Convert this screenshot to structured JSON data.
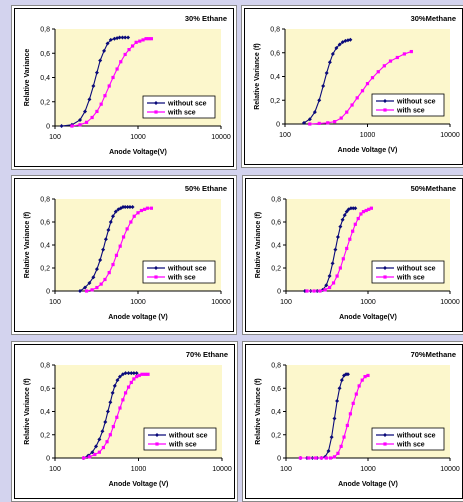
{
  "colors": {
    "without_sce": "#0a0a7a",
    "with_sce": "#ff00ff",
    "plot_bg": "#fcf7cc",
    "page_bg": "#d3d3ee"
  },
  "chart_data": [
    {
      "type": "line",
      "title": "30% Ethane",
      "xlabel": "Anode Voltage(V)",
      "ylabel": "Relative Variance",
      "xscale": "log",
      "xlim": [
        100,
        10000
      ],
      "ylim": [
        0,
        0.8
      ],
      "x_ticks": [
        "100",
        "1000",
        "10000"
      ],
      "y_ticks": [
        "0",
        "0,2",
        "0,4",
        "0,6",
        "0,8"
      ],
      "legend": "lower-right",
      "series": [
        {
          "name": "without sce",
          "x": [
            120,
            160,
            200,
            230,
            260,
            290,
            320,
            350,
            390,
            430,
            470,
            520,
            560,
            600,
            650,
            700,
            760
          ],
          "y": [
            0,
            0.01,
            0.05,
            0.12,
            0.22,
            0.33,
            0.44,
            0.54,
            0.62,
            0.68,
            0.71,
            0.72,
            0.725,
            0.73,
            0.73,
            0.73,
            0.73
          ]
        },
        {
          "name": "with sce",
          "x": [
            160,
            200,
            240,
            280,
            320,
            360,
            400,
            450,
            500,
            560,
            620,
            700,
            780,
            860,
            950,
            1050,
            1150,
            1250,
            1350,
            1450
          ],
          "y": [
            0,
            0.01,
            0.03,
            0.07,
            0.12,
            0.18,
            0.25,
            0.33,
            0.4,
            0.47,
            0.53,
            0.59,
            0.63,
            0.66,
            0.69,
            0.7,
            0.71,
            0.72,
            0.72,
            0.72
          ]
        }
      ]
    },
    {
      "type": "line",
      "title": "30%Methane",
      "xlabel": "Anode Voltage (V)",
      "ylabel": "Relative Variance (f)",
      "xscale": "log",
      "xlim": [
        100,
        10000
      ],
      "ylim": [
        0,
        0.8
      ],
      "x_ticks": [
        "100",
        "1000",
        "10000"
      ],
      "y_ticks": [
        "0",
        "0,2",
        "0,4",
        "0,6",
        "0,8"
      ],
      "legend": "lower-right",
      "series": [
        {
          "name": "without sce",
          "x": [
            170,
            200,
            230,
            260,
            290,
            320,
            350,
            380,
            420,
            460,
            500,
            540,
            580,
            620
          ],
          "y": [
            0.01,
            0.04,
            0.1,
            0.2,
            0.32,
            0.43,
            0.52,
            0.59,
            0.64,
            0.67,
            0.69,
            0.7,
            0.705,
            0.71
          ]
        },
        {
          "name": "with sce",
          "x": [
            200,
            260,
            330,
            400,
            480,
            560,
            650,
            750,
            870,
            1000,
            1150,
            1350,
            1600,
            1900,
            2300,
            2800,
            3400
          ],
          "y": [
            0,
            0.005,
            0.01,
            0.02,
            0.05,
            0.1,
            0.16,
            0.22,
            0.28,
            0.34,
            0.39,
            0.44,
            0.49,
            0.53,
            0.56,
            0.59,
            0.61
          ]
        }
      ]
    },
    {
      "type": "line",
      "title": "50% Ethane",
      "xlabel": "Anode voltage (V)",
      "ylabel": "Relative Variance (f)",
      "xscale": "log",
      "xlim": [
        100,
        10000
      ],
      "ylim": [
        0,
        0.8
      ],
      "x_ticks": [
        "100",
        "1000",
        "10000"
      ],
      "y_ticks": [
        "0",
        "0,2",
        "0,4",
        "0,6",
        "0,8"
      ],
      "legend": "lower-right",
      "series": [
        {
          "name": "without sce",
          "x": [
            200,
            230,
            260,
            290,
            320,
            350,
            380,
            410,
            440,
            470,
            500,
            540,
            580,
            620,
            660,
            700,
            750,
            800,
            860
          ],
          "y": [
            0,
            0.03,
            0.07,
            0.12,
            0.19,
            0.27,
            0.36,
            0.45,
            0.53,
            0.6,
            0.65,
            0.69,
            0.71,
            0.72,
            0.73,
            0.73,
            0.73,
            0.73,
            0.73
          ]
        },
        {
          "name": "with sce",
          "x": [
            240,
            280,
            320,
            360,
            400,
            450,
            500,
            550,
            610,
            670,
            740,
            820,
            900,
            1000,
            1100,
            1200,
            1300,
            1450
          ],
          "y": [
            0,
            0.01,
            0.03,
            0.06,
            0.1,
            0.16,
            0.23,
            0.31,
            0.39,
            0.47,
            0.54,
            0.6,
            0.65,
            0.68,
            0.7,
            0.71,
            0.72,
            0.72
          ]
        }
      ]
    },
    {
      "type": "line",
      "title": "50%Methane",
      "xlabel": "Anode Voltage(V)",
      "ylabel": "Relative Variance (f)",
      "xscale": "log",
      "xlim": [
        100,
        10000
      ],
      "ylim": [
        0,
        0.8
      ],
      "x_ticks": [
        "100",
        "1000",
        "10000"
      ],
      "y_ticks": [
        "0",
        "0,2",
        "0,4",
        "0,6",
        "0,8"
      ],
      "legend": "lower-right",
      "series": [
        {
          "name": "without sce",
          "x": [
            170,
            200,
            240,
            280,
            310,
            340,
            370,
            400,
            430,
            460,
            490,
            520,
            550,
            580,
            620,
            660,
            700
          ],
          "y": [
            0,
            0,
            0,
            0.01,
            0.05,
            0.13,
            0.24,
            0.36,
            0.47,
            0.56,
            0.62,
            0.66,
            0.69,
            0.71,
            0.72,
            0.72,
            0.72
          ]
        },
        {
          "name": "with sce",
          "x": [
            180,
            220,
            260,
            300,
            340,
            380,
            420,
            460,
            500,
            550,
            600,
            650,
            700,
            760,
            820,
            880,
            950,
            1020,
            1100
          ],
          "y": [
            0,
            0,
            0,
            0.01,
            0.03,
            0.07,
            0.13,
            0.2,
            0.28,
            0.37,
            0.45,
            0.52,
            0.58,
            0.63,
            0.67,
            0.69,
            0.7,
            0.71,
            0.72
          ]
        }
      ]
    },
    {
      "type": "line",
      "title": "70% Ethane",
      "xlabel": "Anode Voltage (V)",
      "ylabel": "Relative Variance (f)",
      "xscale": "log",
      "xlim": [
        100,
        10000
      ],
      "ylim": [
        0,
        0.8
      ],
      "x_ticks": [
        "100",
        "1000",
        "10000"
      ],
      "y_ticks": [
        "0",
        "0,2",
        "0,4",
        "0,6",
        "0,8"
      ],
      "legend": "lower-right",
      "series": [
        {
          "name": "without sce",
          "x": [
            220,
            250,
            280,
            310,
            340,
            370,
            400,
            430,
            460,
            490,
            520,
            560,
            600,
            650,
            700,
            760,
            820,
            880,
            950
          ],
          "y": [
            0,
            0.02,
            0.05,
            0.1,
            0.16,
            0.23,
            0.31,
            0.4,
            0.48,
            0.56,
            0.62,
            0.67,
            0.7,
            0.72,
            0.73,
            0.73,
            0.73,
            0.73,
            0.73
          ]
        },
        {
          "name": "with sce",
          "x": [
            220,
            260,
            300,
            340,
            380,
            420,
            460,
            500,
            550,
            600,
            650,
            700,
            760,
            820,
            880,
            950,
            1020,
            1100,
            1200,
            1300
          ],
          "y": [
            0,
            0.01,
            0.03,
            0.05,
            0.09,
            0.14,
            0.2,
            0.27,
            0.35,
            0.43,
            0.5,
            0.56,
            0.61,
            0.65,
            0.68,
            0.7,
            0.71,
            0.72,
            0.72,
            0.72
          ]
        }
      ]
    },
    {
      "type": "line",
      "title": "70%Methane",
      "xlabel": "Anode Voltage (V)",
      "ylabel": "Relative Variance (f)",
      "xscale": "log",
      "xlim": [
        100,
        10000
      ],
      "ylim": [
        0,
        0.8
      ],
      "x_ticks": [
        "100",
        "1000",
        "10000"
      ],
      "y_ticks": [
        "0",
        "0,2",
        "0,4",
        "0,6",
        "0,8"
      ],
      "legend": "lower-right",
      "series": [
        {
          "name": "without sce",
          "x": [
            150,
            180,
            210,
            240,
            270,
            300,
            330,
            360,
            390,
            420,
            450,
            480,
            510,
            540,
            570
          ],
          "y": [
            0,
            0,
            0,
            0,
            0,
            0.01,
            0.06,
            0.18,
            0.34,
            0.49,
            0.6,
            0.67,
            0.71,
            0.72,
            0.72
          ]
        },
        {
          "name": "with sce",
          "x": [
            150,
            190,
            230,
            270,
            310,
            350,
            390,
            430,
            470,
            510,
            560,
            610,
            660,
            720,
            780,
            850,
            920,
            1000
          ],
          "y": [
            0,
            0,
            0,
            0,
            0,
            0,
            0.01,
            0.04,
            0.1,
            0.18,
            0.28,
            0.38,
            0.47,
            0.55,
            0.62,
            0.67,
            0.7,
            0.71
          ]
        }
      ]
    }
  ]
}
